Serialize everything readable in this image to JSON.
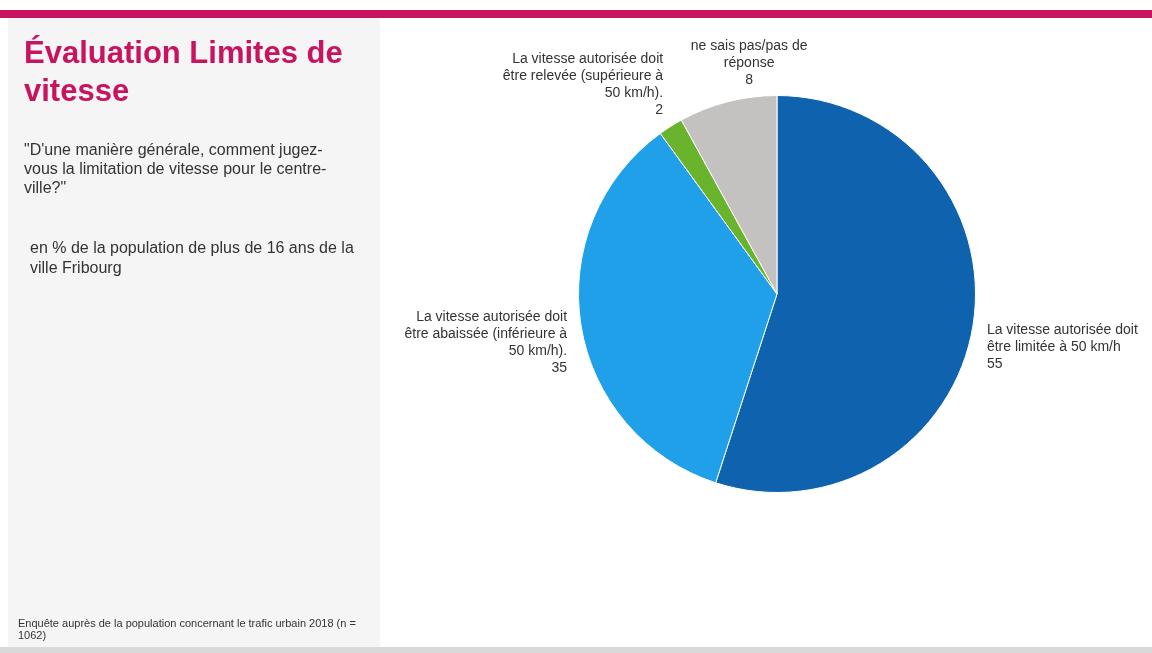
{
  "chart_data": {
    "type": "pie",
    "title": "Évaluation Limites de vitesse",
    "subtitle": "\"D'une manière générale, comment jugez-vous la limitation de vitesse pour le centre-ville?\"",
    "categories": [
      "La vitesse autorisée doit être limitée à 50 km/h",
      "La vitesse autorisée doit être abaissée (inférieure à 50 km/h).",
      "La vitesse autorisée doit être relevée (supérieure à 50 km/h).",
      "ne sais pas/pas de réponse"
    ],
    "values": [
      55,
      35,
      2,
      8
    ],
    "colors": [
      "#0e62ae",
      "#1fa0e8",
      "#6ab42d",
      "#c3c2c1"
    ],
    "data_labels": true,
    "legend": false,
    "annotations": [
      "en % de la population de plus de 16 ans de la ville Fribourg",
      "Enquête auprès de la population concernant le trafic urbain 2018 (n = 1062)"
    ]
  }
}
